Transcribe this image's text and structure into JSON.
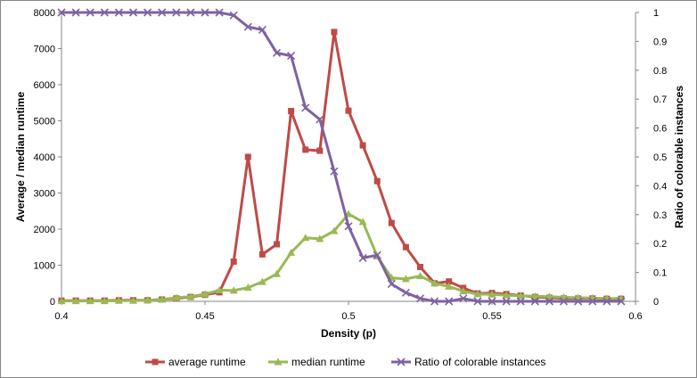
{
  "chart_data": {
    "type": "line",
    "xlabel": "Density (p)",
    "ylabel_left": "Average / median runtime",
    "ylabel_right": "Ratio of colorable instances",
    "xlim": [
      0.4,
      0.6
    ],
    "xticks": [
      "0.4",
      "0.45",
      "0.5",
      "0.55",
      "0.6"
    ],
    "ylim_left": [
      0,
      8000
    ],
    "yticks_left": [
      "0",
      "1000",
      "2000",
      "3000",
      "4000",
      "5000",
      "6000",
      "7000",
      "8000"
    ],
    "ylim_right": [
      0,
      1
    ],
    "yticks_right": [
      "0",
      "0.1",
      "0.2",
      "0.3",
      "0.4",
      "0.5",
      "0.6",
      "0.7",
      "0.8",
      "0.9",
      "1"
    ],
    "grid": false,
    "legend_position": "bottom",
    "x": [
      0.4,
      0.405,
      0.41,
      0.415,
      0.42,
      0.425,
      0.43,
      0.435,
      0.44,
      0.445,
      0.45,
      0.455,
      0.46,
      0.465,
      0.47,
      0.475,
      0.48,
      0.485,
      0.49,
      0.495,
      0.5,
      0.505,
      0.51,
      0.515,
      0.52,
      0.525,
      0.53,
      0.535,
      0.54,
      0.545,
      0.55,
      0.555,
      0.56,
      0.565,
      0.57,
      0.575,
      0.58,
      0.585,
      0.59,
      0.595
    ],
    "series": [
      {
        "name": "average runtime",
        "axis": "left",
        "color": "#BE4B48",
        "marker": "square",
        "values": [
          20,
          20,
          20,
          20,
          30,
          30,
          30,
          50,
          80,
          120,
          180,
          250,
          1100,
          4000,
          1300,
          1580,
          5270,
          4200,
          4170,
          7460,
          5280,
          4320,
          3330,
          2170,
          1500,
          950,
          500,
          550,
          370,
          220,
          230,
          200,
          160,
          120,
          100,
          80,
          80,
          80,
          70,
          70
        ]
      },
      {
        "name": "median runtime",
        "axis": "left",
        "color": "#98B954",
        "marker": "triangle",
        "values": [
          10,
          10,
          10,
          10,
          20,
          20,
          30,
          50,
          100,
          130,
          200,
          310,
          300,
          380,
          540,
          760,
          1350,
          1760,
          1730,
          1950,
          2420,
          2200,
          1250,
          650,
          620,
          700,
          500,
          410,
          280,
          200,
          190,
          170,
          150,
          140,
          130,
          110,
          100,
          90,
          80,
          80
        ]
      },
      {
        "name": "Ratio of colorable instances",
        "axis": "right",
        "color": "#7E62A1",
        "marker": "x",
        "values": [
          1,
          1,
          1,
          1,
          1,
          1,
          1,
          1,
          1,
          1,
          1,
          1,
          0.99,
          0.95,
          0.94,
          0.86,
          0.85,
          0.67,
          0.63,
          0.45,
          0.26,
          0.15,
          0.16,
          0.06,
          0.03,
          0.01,
          0,
          0,
          0.01,
          0,
          0,
          0,
          0,
          0,
          0,
          0,
          0,
          0,
          0,
          0
        ]
      }
    ]
  }
}
